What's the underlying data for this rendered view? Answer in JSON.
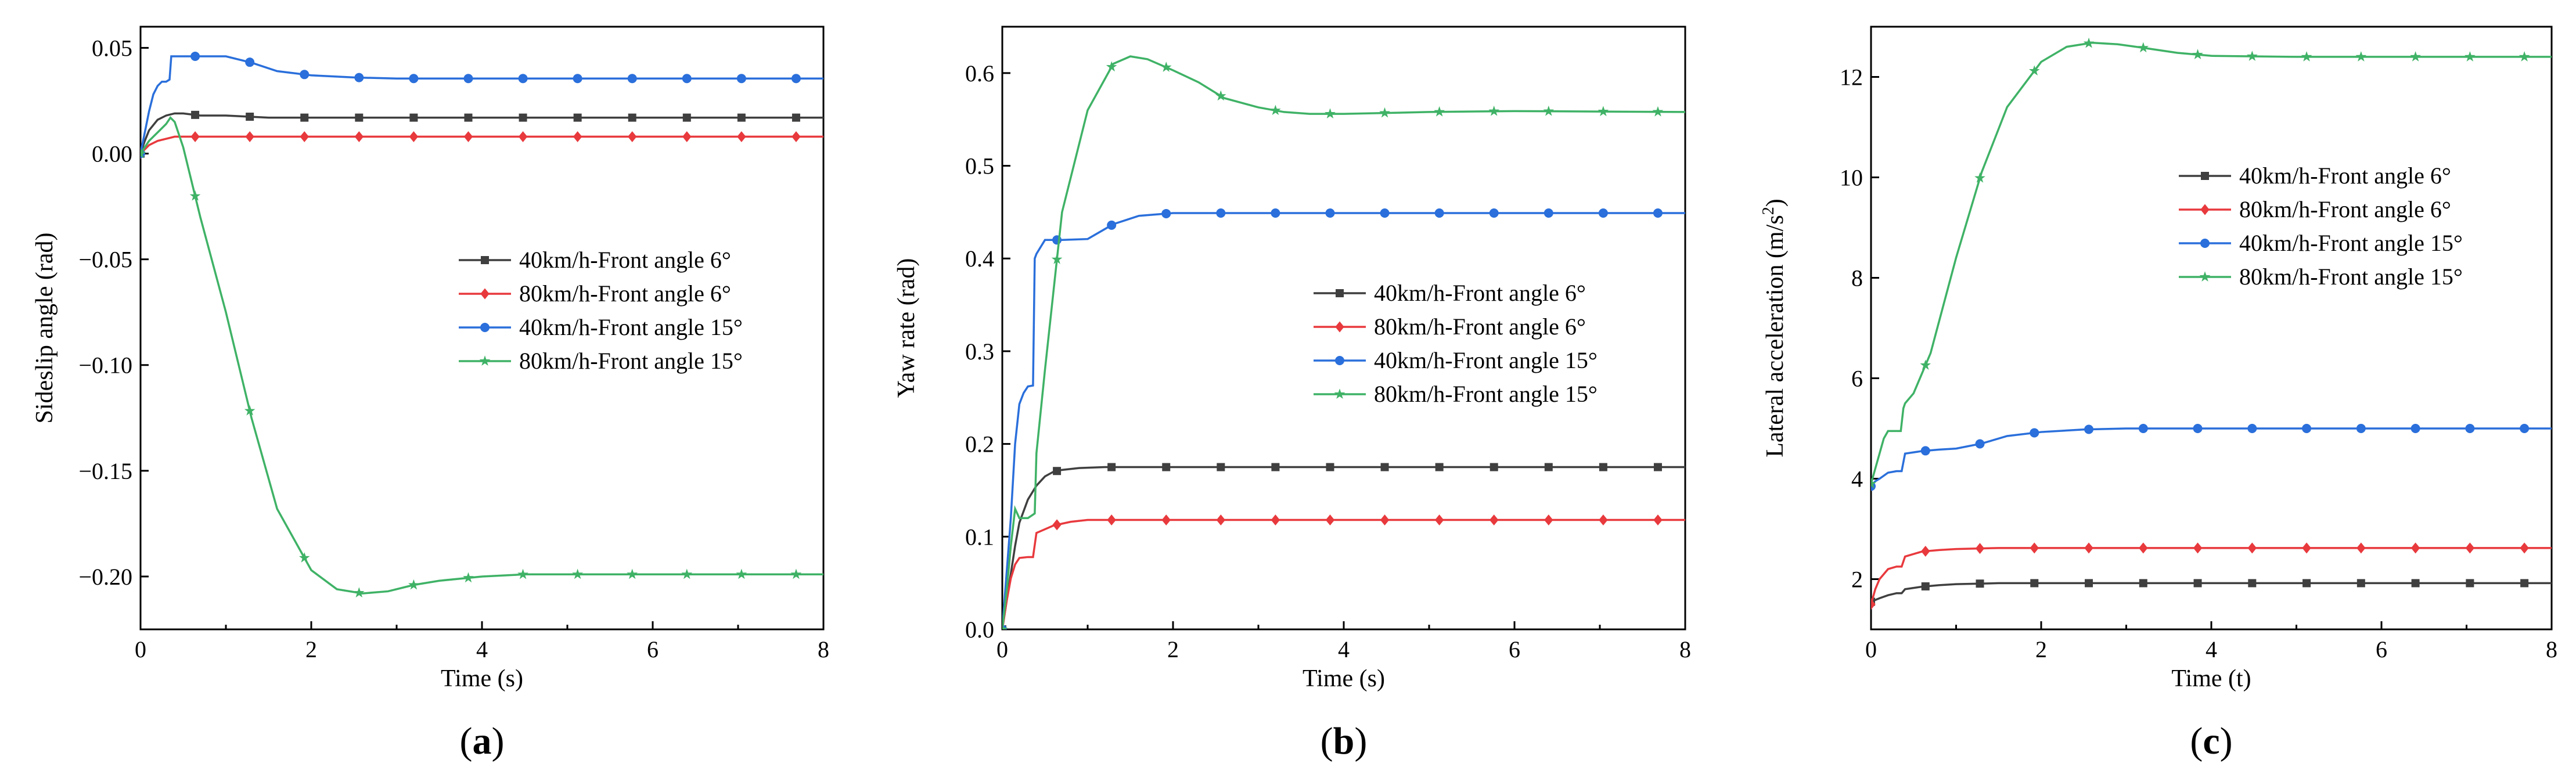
{
  "figure": {
    "colors": {
      "black": "#3f3f3f",
      "red": "#e8393d",
      "blue": "#2a6fdb",
      "green": "#3fb266"
    }
  },
  "chart_data": [
    {
      "type": "line",
      "panel_label": "(a)",
      "panel_letter": "a",
      "xlabel": "Time (s)",
      "ylabel": "Sideslip angle (rad)",
      "xlim": [
        0,
        8
      ],
      "ylim": [
        -0.225,
        0.06
      ],
      "xticks": [
        0,
        2,
        4,
        6,
        8
      ],
      "yticks": [
        0.05,
        0.0,
        -0.05,
        -0.1,
        -0.15,
        -0.2
      ],
      "yticklabels": [
        "0.05",
        "0.00",
        "−0.05",
        "−0.10",
        "−0.15",
        "−0.20"
      ],
      "legend_position": "center-right",
      "series": [
        {
          "name": "40km/h-Front angle 6°",
          "color": "#3f3f3f",
          "marker": "square",
          "x": [
            0,
            0.05,
            0.1,
            0.2,
            0.3,
            0.4,
            0.5,
            0.7,
            1.0,
            1.5,
            2.5,
            4,
            8
          ],
          "y": [
            0.0,
            0.006,
            0.011,
            0.016,
            0.018,
            0.019,
            0.019,
            0.018,
            0.018,
            0.017,
            0.017,
            0.017,
            0.017
          ]
        },
        {
          "name": "80km/h-Front angle 6°",
          "color": "#e8393d",
          "marker": "diamond",
          "x": [
            0,
            0.05,
            0.1,
            0.2,
            0.3,
            0.4,
            0.5,
            0.7,
            1.0,
            2.0,
            4,
            8
          ],
          "y": [
            0.0,
            0.002,
            0.004,
            0.006,
            0.007,
            0.008,
            0.008,
            0.008,
            0.008,
            0.008,
            0.008,
            0.008
          ]
        },
        {
          "name": "40km/h-Front angle 15°",
          "color": "#2a6fdb",
          "marker": "circle",
          "x": [
            0,
            0.05,
            0.1,
            0.15,
            0.2,
            0.25,
            0.3,
            0.34,
            0.36,
            0.4,
            0.6,
            0.8,
            1.0,
            1.3,
            1.6,
            2.0,
            2.5,
            3,
            4,
            8
          ],
          "y": [
            0.0,
            0.01,
            0.02,
            0.028,
            0.032,
            0.034,
            0.034,
            0.035,
            0.046,
            0.046,
            0.046,
            0.046,
            0.046,
            0.043,
            0.039,
            0.037,
            0.036,
            0.0355,
            0.0355,
            0.0355
          ]
        },
        {
          "name": "80km/h-Front angle 15°",
          "color": "#3fb266",
          "marker": "star",
          "x": [
            0,
            0.1,
            0.2,
            0.3,
            0.35,
            0.4,
            0.5,
            0.7,
            1.0,
            1.3,
            1.6,
            2.0,
            2.3,
            2.6,
            2.9,
            3.2,
            3.5,
            4.0,
            4.5,
            5.0,
            6,
            7,
            8
          ],
          "y": [
            0.0,
            0.006,
            0.01,
            0.014,
            0.017,
            0.015,
            0.003,
            -0.03,
            -0.075,
            -0.125,
            -0.168,
            -0.197,
            -0.206,
            -0.208,
            -0.207,
            -0.204,
            -0.202,
            -0.2,
            -0.199,
            -0.199,
            -0.199,
            -0.199,
            -0.199
          ]
        }
      ]
    },
    {
      "type": "line",
      "panel_label": "(b)",
      "panel_letter": "b",
      "xlabel": "Time (s)",
      "ylabel": "Yaw rate (rad)",
      "xlim": [
        0,
        8
      ],
      "ylim": [
        0,
        0.65
      ],
      "xticks": [
        0,
        2,
        4,
        6,
        8
      ],
      "yticks": [
        0.0,
        0.1,
        0.2,
        0.3,
        0.4,
        0.5,
        0.6
      ],
      "yticklabels": [
        "0.0",
        "0.1",
        "0.2",
        "0.3",
        "0.4",
        "0.5",
        "0.6"
      ],
      "legend_position": "center-right",
      "series": [
        {
          "name": "40km/h-Front angle 6°",
          "color": "#3f3f3f",
          "marker": "square",
          "x": [
            0,
            0.05,
            0.1,
            0.15,
            0.2,
            0.3,
            0.4,
            0.5,
            0.6,
            0.7,
            0.9,
            1.2,
            1.5,
            2.0,
            3,
            8
          ],
          "y": [
            0.0,
            0.03,
            0.06,
            0.09,
            0.115,
            0.14,
            0.155,
            0.165,
            0.17,
            0.172,
            0.174,
            0.175,
            0.175,
            0.175,
            0.175,
            0.175
          ]
        },
        {
          "name": "80km/h-Front angle 6°",
          "color": "#e8393d",
          "marker": "diamond",
          "x": [
            0,
            0.05,
            0.1,
            0.15,
            0.2,
            0.3,
            0.36,
            0.4,
            0.6,
            0.8,
            1.0,
            2.0,
            8
          ],
          "y": [
            0.0,
            0.03,
            0.055,
            0.07,
            0.077,
            0.078,
            0.078,
            0.104,
            0.112,
            0.116,
            0.118,
            0.118,
            0.118
          ]
        },
        {
          "name": "40km/h-Front angle 15°",
          "color": "#2a6fdb",
          "marker": "circle",
          "x": [
            0,
            0.05,
            0.1,
            0.15,
            0.2,
            0.25,
            0.3,
            0.36,
            0.38,
            0.4,
            0.5,
            0.7,
            1.0,
            1.3,
            1.6,
            2.0,
            2.5,
            3,
            8
          ],
          "y": [
            0.0,
            0.06,
            0.12,
            0.2,
            0.243,
            0.255,
            0.262,
            0.263,
            0.4,
            0.405,
            0.42,
            0.42,
            0.421,
            0.437,
            0.446,
            0.449,
            0.449,
            0.449,
            0.449
          ]
        },
        {
          "name": "80km/h-Front angle 15°",
          "color": "#3fb266",
          "marker": "star",
          "x": [
            0,
            0.05,
            0.1,
            0.15,
            0.2,
            0.25,
            0.3,
            0.38,
            0.4,
            0.5,
            0.7,
            1.0,
            1.3,
            1.5,
            1.7,
            2.0,
            2.3,
            2.6,
            3.0,
            3.3,
            3.6,
            4.0,
            5,
            6,
            8
          ],
          "y": [
            0.0,
            0.04,
            0.09,
            0.13,
            0.12,
            0.12,
            0.12,
            0.125,
            0.19,
            0.28,
            0.45,
            0.56,
            0.61,
            0.618,
            0.615,
            0.603,
            0.59,
            0.573,
            0.563,
            0.558,
            0.556,
            0.556,
            0.558,
            0.559,
            0.558
          ]
        }
      ]
    },
    {
      "type": "line",
      "panel_label": "(c)",
      "panel_letter": "c",
      "xlabel": "Time (t)",
      "ylabel": "Lateral acceleration (m/s²)",
      "ylabel_main": "Lateral acceleration (m/s",
      "ylabel_sup": "2",
      "ylabel_end": ")",
      "xlim": [
        0,
        8
      ],
      "ylim": [
        1,
        13
      ],
      "xticks": [
        0,
        2,
        4,
        6,
        8
      ],
      "yticks": [
        2,
        4,
        6,
        8,
        10,
        12
      ],
      "yticklabels": [
        "2",
        "4",
        "6",
        "8",
        "10",
        "12"
      ],
      "legend_position": "top-right",
      "series": [
        {
          "name": "40km/h-Front angle 6°",
          "color": "#3f3f3f",
          "marker": "square",
          "x": [
            0,
            0.1,
            0.2,
            0.3,
            0.36,
            0.4,
            0.6,
            0.8,
            1.0,
            1.5,
            2.0,
            8
          ],
          "y": [
            1.55,
            1.62,
            1.68,
            1.72,
            1.72,
            1.8,
            1.85,
            1.88,
            1.9,
            1.92,
            1.92,
            1.92
          ]
        },
        {
          "name": "80km/h-Front angle 6°",
          "color": "#e8393d",
          "marker": "diamond",
          "x": [
            0,
            0.05,
            0.1,
            0.2,
            0.3,
            0.36,
            0.4,
            0.6,
            0.8,
            1.0,
            1.5,
            2.0,
            8
          ],
          "y": [
            1.5,
            1.8,
            2.0,
            2.2,
            2.25,
            2.25,
            2.45,
            2.55,
            2.58,
            2.6,
            2.62,
            2.62,
            2.62
          ]
        },
        {
          "name": "40km/h-Front angle 15°",
          "color": "#2a6fdb",
          "marker": "circle",
          "x": [
            0,
            0.05,
            0.1,
            0.2,
            0.3,
            0.36,
            0.4,
            0.6,
            0.8,
            1.0,
            1.3,
            1.6,
            2.0,
            2.5,
            3,
            8
          ],
          "y": [
            3.85,
            3.95,
            4.0,
            4.12,
            4.15,
            4.15,
            4.5,
            4.55,
            4.58,
            4.6,
            4.7,
            4.85,
            4.93,
            4.98,
            5.0,
            5.0
          ]
        },
        {
          "name": "80km/h-Front angle 15°",
          "color": "#3fb266",
          "marker": "star",
          "x": [
            0,
            0.05,
            0.1,
            0.15,
            0.2,
            0.25,
            0.3,
            0.35,
            0.38,
            0.4,
            0.5,
            0.7,
            1.0,
            1.3,
            1.6,
            2.0,
            2.3,
            2.6,
            2.9,
            3.2,
            3.6,
            4.0,
            5,
            6,
            8
          ],
          "y": [
            3.9,
            4.2,
            4.5,
            4.8,
            4.95,
            4.95,
            4.95,
            4.95,
            5.4,
            5.5,
            5.7,
            6.5,
            8.4,
            10.1,
            11.4,
            12.3,
            12.6,
            12.68,
            12.65,
            12.58,
            12.48,
            12.42,
            12.4,
            12.4,
            12.4
          ]
        }
      ]
    }
  ]
}
